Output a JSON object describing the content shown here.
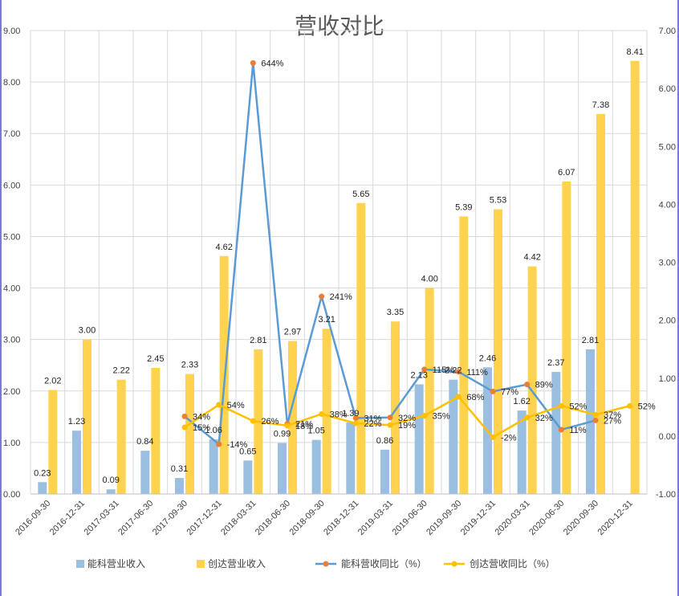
{
  "chart_data": {
    "type": "bar",
    "title": "营收对比",
    "xlabel": "",
    "ylabel": "",
    "categories": [
      "2016-09-30",
      "2016-12-31",
      "2017-03-31",
      "2017-06-30",
      "2017-09-30",
      "2017-12-31",
      "2018-03-31",
      "2018-06-30",
      "2018-09-30",
      "2018-12-31",
      "2019-03-31",
      "2019-06-30",
      "2019-09-30",
      "2019-12-31",
      "2020-03-31",
      "2020-06-30",
      "2020-09-30",
      "2020-12-31"
    ],
    "ylim": [
      0,
      9
    ],
    "y_ticks": [
      "0.00",
      "1.00",
      "2.00",
      "3.00",
      "4.00",
      "5.00",
      "6.00",
      "7.00",
      "8.00",
      "9.00"
    ],
    "y2lim": [
      -1,
      7
    ],
    "y2_ticks": [
      "-1.00",
      "0.00",
      "1.00",
      "2.00",
      "3.00",
      "4.00",
      "5.00",
      "6.00",
      "7.00"
    ],
    "grid": true,
    "legend_position": "bottom",
    "series": [
      {
        "name": "能科营业收入",
        "type": "bar",
        "axis": "left",
        "color": "#9bbfe0",
        "values": [
          0.23,
          1.23,
          0.09,
          0.84,
          0.31,
          1.06,
          0.65,
          0.99,
          1.05,
          1.39,
          0.86,
          2.13,
          2.22,
          2.46,
          1.62,
          2.37,
          2.81,
          null
        ],
        "labels": [
          "0.23",
          "1.23",
          "0.09",
          "0.84",
          "0.31",
          "1.06",
          "0.65",
          "0.99",
          "1.05",
          "1.39",
          "0.86",
          "2.13",
          "2.22",
          "2.46",
          "1.62",
          "2.37",
          "2.81",
          ""
        ]
      },
      {
        "name": "创达营业收入",
        "type": "bar",
        "axis": "left",
        "color": "#ffd34d",
        "values": [
          2.02,
          3.0,
          2.22,
          2.45,
          2.33,
          4.62,
          2.81,
          2.97,
          3.21,
          5.65,
          3.35,
          4.0,
          5.39,
          5.53,
          4.42,
          6.07,
          7.38,
          8.41
        ],
        "labels": [
          "2.02",
          "3.00",
          "2.22",
          "2.45",
          "2.33",
          "4.62",
          "2.81",
          "2.97",
          "3.21",
          "5.65",
          "3.35",
          "4.00",
          "5.39",
          "5.53",
          "4.42",
          "6.07",
          "7.38",
          "8.41"
        ]
      },
      {
        "name": "能科营收同比（%）",
        "type": "line",
        "axis": "right",
        "color": "#5b9bd5",
        "marker_color": "#ed7d31",
        "values": [
          null,
          null,
          null,
          null,
          0.34,
          -0.14,
          6.44,
          0.21,
          2.41,
          0.31,
          0.32,
          1.15,
          1.11,
          0.77,
          0.89,
          0.11,
          0.27,
          null
        ],
        "labels": [
          "",
          "",
          "",
          "",
          "34%",
          "-14%",
          "644%",
          "21%",
          "241%",
          "31%",
          "32%",
          "115%",
          "111%",
          "77%",
          "89%",
          "11%",
          "27%",
          ""
        ]
      },
      {
        "name": "创达营收同比（%）",
        "type": "line",
        "axis": "right",
        "color": "#ffc000",
        "values": [
          null,
          null,
          null,
          null,
          0.15,
          0.54,
          0.26,
          0.18,
          0.38,
          0.22,
          0.19,
          0.35,
          0.68,
          -0.02,
          0.32,
          0.52,
          0.37,
          0.52
        ],
        "labels": [
          "",
          "",
          "",
          "",
          "15%",
          "54%",
          "26%",
          "18%",
          "38%",
          "22%",
          "19%",
          "35%",
          "68%",
          "-2%",
          "32%",
          "52%",
          "37%",
          "52%"
        ]
      }
    ]
  }
}
